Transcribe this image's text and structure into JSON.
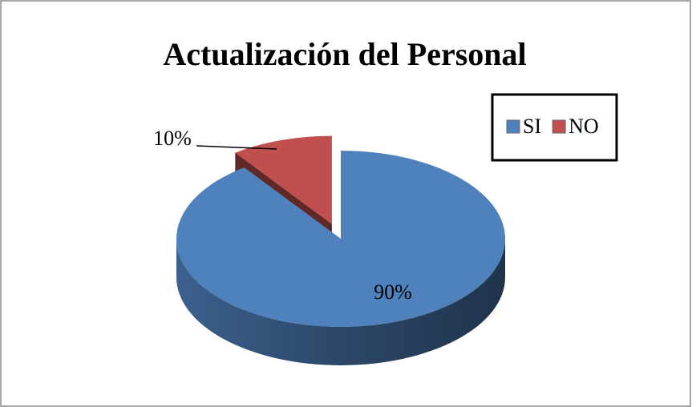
{
  "chart_data": {
    "type": "pie",
    "title": "Actualización del Personal",
    "categories": [
      "SI",
      "NO"
    ],
    "values": [
      90,
      10
    ],
    "value_labels": [
      "90%",
      "10%"
    ],
    "colors": [
      "#4f81bd",
      "#c0504d"
    ],
    "legend": "top-right"
  }
}
